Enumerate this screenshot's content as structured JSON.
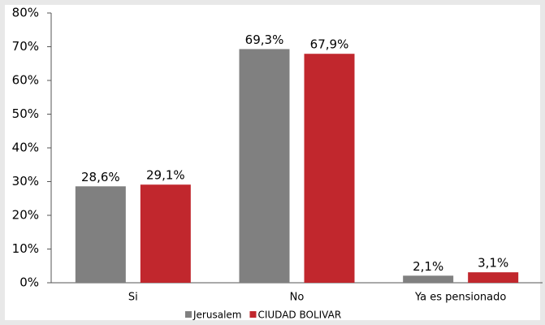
{
  "chart_data": {
    "type": "bar",
    "categories": [
      "Si",
      "No",
      "Ya es pensionado"
    ],
    "series": [
      {
        "name": "Jerusalem",
        "color": "#808080",
        "values": [
          28.6,
          69.3,
          2.1
        ],
        "value_labels": [
          "28,6%",
          "69,3%",
          "2,1%"
        ]
      },
      {
        "name": "CIUDAD BOLIVAR",
        "color": "#c1272d",
        "values": [
          29.1,
          67.9,
          3.1
        ],
        "value_labels": [
          "29,1%",
          "67,9%",
          "3,1%"
        ]
      }
    ],
    "ylim": [
      0,
      80
    ],
    "yticks": [
      {
        "value": 0,
        "label": "0%"
      },
      {
        "value": 10,
        "label": "10%"
      },
      {
        "value": 20,
        "label": "20%"
      },
      {
        "value": 30,
        "label": "30%"
      },
      {
        "value": 40,
        "label": "40%"
      },
      {
        "value": 50,
        "label": "50%"
      },
      {
        "value": 60,
        "label": "60%"
      },
      {
        "value": 70,
        "label": "70%"
      },
      {
        "value": 80,
        "label": "80%"
      }
    ],
    "grid": false,
    "legend": "bottom"
  }
}
